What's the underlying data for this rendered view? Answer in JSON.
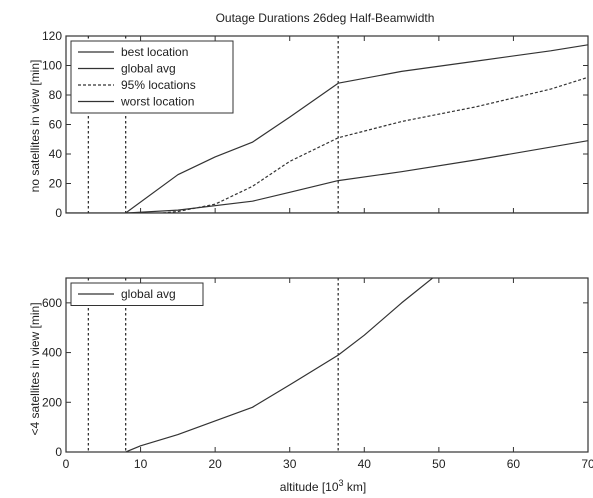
{
  "chart_data": [
    {
      "type": "line",
      "title": "Outage Durations 26deg Half-Beamwidth",
      "ylabel": "no satellites in view [min]",
      "xlim": [
        0,
        70
      ],
      "ylim": [
        0,
        120
      ],
      "xticks": [
        0,
        10,
        20,
        30,
        40,
        50,
        60,
        70
      ],
      "xticklabels": [
        "",
        "",
        "",
        "",
        "",
        "",
        "",
        ""
      ],
      "yticks": [
        0,
        20,
        40,
        60,
        80,
        100,
        120
      ],
      "yticklabels": [
        "0",
        "20",
        "40",
        "60",
        "80",
        "100",
        "120"
      ],
      "legend_position": "top-left",
      "legend": [
        "best location",
        "global avg",
        "95% locations",
        "worst location"
      ],
      "series": [
        {
          "name": "best location",
          "style": "solid",
          "x": [
            0,
            70
          ],
          "y": [
            0,
            0
          ]
        },
        {
          "name": "global avg",
          "style": "solid",
          "x": [
            8,
            15,
            25,
            30,
            36.5,
            45,
            55,
            70
          ],
          "y": [
            0,
            2,
            8,
            14,
            22,
            28,
            36,
            49
          ]
        },
        {
          "name": "95% locations",
          "style": "dashed",
          "x": [
            13,
            15,
            20,
            25,
            30,
            36.5,
            45,
            55,
            65,
            70
          ],
          "y": [
            0,
            1,
            6,
            18,
            35,
            51,
            62,
            72,
            84,
            92
          ]
        },
        {
          "name": "worst location",
          "style": "solid",
          "x": [
            8,
            15,
            20,
            25,
            30,
            36.5,
            45,
            55,
            65,
            70
          ],
          "y": [
            0,
            26,
            38,
            48,
            65,
            88,
            96,
            103,
            110,
            114
          ]
        }
      ],
      "vertical_lines": [
        3,
        8,
        36.5
      ]
    },
    {
      "type": "line",
      "ylabel": "<4 satellites in view [min]",
      "xlabel_main": "altitude [10",
      "xlabel_sup": "3",
      "xlabel_unit": " km]",
      "xlim": [
        0,
        70
      ],
      "ylim": [
        0,
        700
      ],
      "xticks": [
        0,
        10,
        20,
        30,
        40,
        50,
        60,
        70
      ],
      "xticklabels": [
        "0",
        "10",
        "20",
        "30",
        "40",
        "50",
        "60",
        "70"
      ],
      "yticks": [
        0,
        200,
        400,
        600
      ],
      "yticklabels": [
        "0",
        "200",
        "400",
        "600"
      ],
      "legend_position": "top-left",
      "legend": [
        "global avg"
      ],
      "series": [
        {
          "name": "global avg",
          "style": "solid",
          "x": [
            8,
            10,
            15,
            20,
            25,
            30,
            36.5,
            40,
            45,
            50
          ],
          "y": [
            0,
            25,
            70,
            125,
            180,
            270,
            390,
            470,
            600,
            720
          ]
        }
      ],
      "vertical_lines": [
        3,
        8,
        36.5
      ]
    }
  ]
}
